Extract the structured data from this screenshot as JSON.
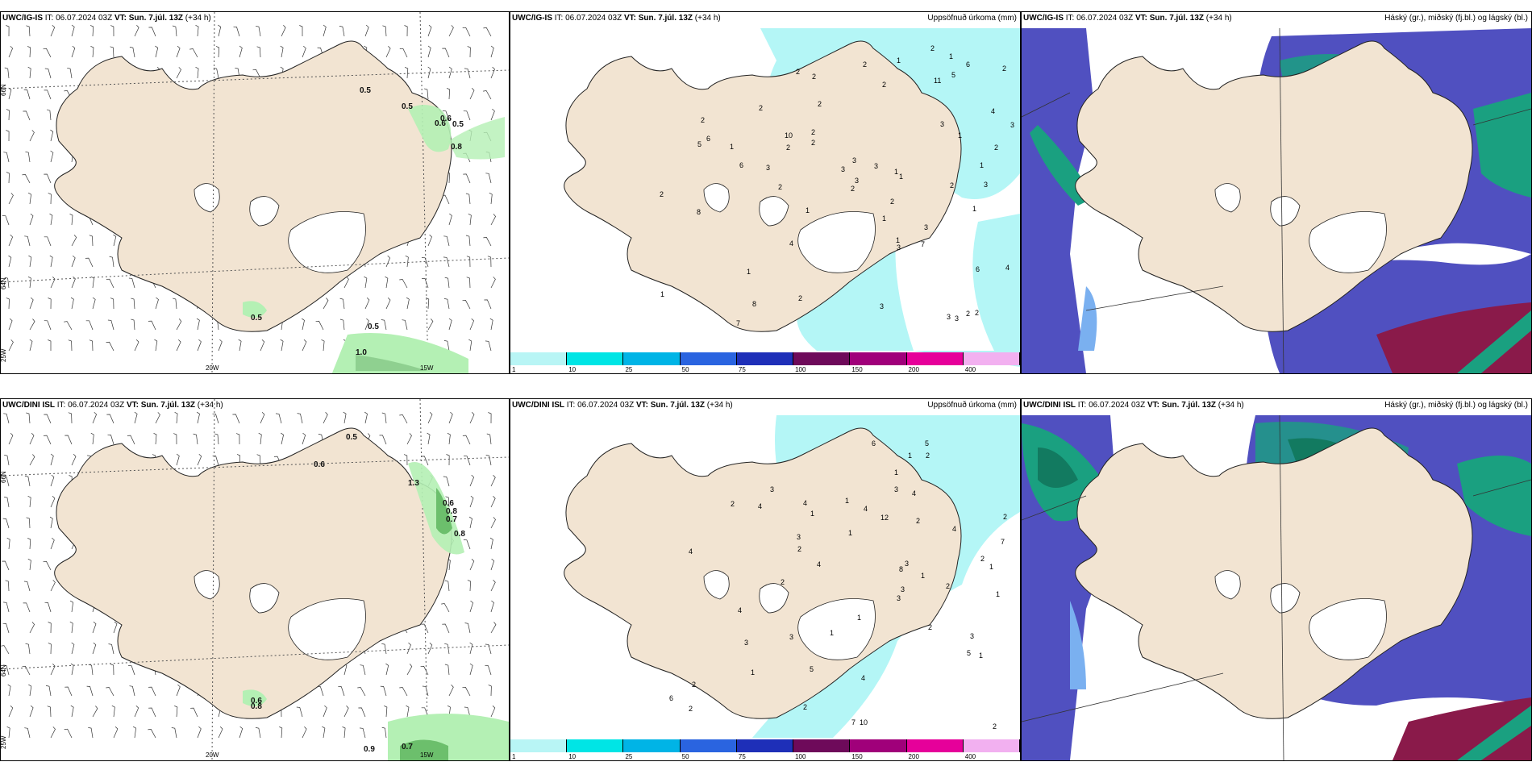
{
  "panels": {
    "p1": {
      "model": "UWC/IG-IS",
      "it_label": "IT:",
      "it": "06.07.2024 03Z",
      "vt_label": "VT:",
      "vt": "Sun. 7.júl. 13Z",
      "lead": "(+34 h)",
      "right": ""
    },
    "p2": {
      "model": "UWC/IG-IS",
      "it_label": "IT:",
      "it": "06.07.2024 03Z",
      "vt_label": "VT:",
      "vt": "Sun. 7.júl. 13Z",
      "lead": "(+34 h)",
      "right": "Uppsöfnuð úrkoma (mm)"
    },
    "p3": {
      "model": "UWC/IG-IS",
      "it_label": "IT:",
      "it": "06.07.2024 03Z",
      "vt_label": "VT:",
      "vt": "Sun. 7.júl. 13Z",
      "lead": "(+34 h)",
      "right": "Háský (gr.), miðský (fj.bl.) og lágský (bl.)"
    },
    "p4": {
      "model": "UWC/DINI ISL",
      "it_label": "IT:",
      "it": "06.07.2024 03Z",
      "vt_label": "VT:",
      "vt": "Sun. 7.júl. 13Z",
      "lead": "(+34 h)",
      "right": ""
    },
    "p5": {
      "model": "UWC/DINI ISL",
      "it_label": "IT:",
      "it": "06.07.2024 03Z",
      "vt_label": "VT:",
      "vt": "Sun. 7.júl. 13Z",
      "lead": "(+34 h)",
      "right": "Uppsöfnuð úrkoma (mm)"
    },
    "p6": {
      "model": "UWC/DINI ISL",
      "it_label": "IT:",
      "it": "06.07.2024 03Z",
      "vt_label": "VT:",
      "vt": "Sun. 7.júl. 13Z",
      "lead": "(+34 h)",
      "right": "Háský (gr.), miðský (fj.bl.) og lágský (bl.)"
    }
  },
  "axis_labels": {
    "lat66": "66N",
    "lat64": "64N",
    "lon20": "20W",
    "lon15": "15W",
    "lon25": "25W"
  },
  "colorbar": {
    "labels": [
      "1",
      "10",
      "25",
      "50",
      "75",
      "100",
      "150",
      "200",
      "400"
    ],
    "colors": [
      "#b8f5f5",
      "#00e5e5",
      "#00b4e6",
      "#2a64e0",
      "#1e2fb8",
      "#6e0a5a",
      "#a0007a",
      "#e6009a",
      "#f2b0f0"
    ]
  },
  "colors": {
    "land": "#f2e4d2",
    "precip": "#b4f6f6",
    "precip_green": "#b4f0b4",
    "cloud_high": "#5050c0",
    "cloud_mid": "#1aa080",
    "cloud_low": "#7ab0f0"
  },
  "wind_gust_labels_top": [
    "0.5",
    "0.5",
    "0.6",
    "0.5",
    "0.8",
    "0.5",
    "0.5",
    "1.0",
    "0.6"
  ],
  "wind_gust_labels_bottom": [
    "0.5",
    "0.6",
    "1.3",
    "0.6",
    "0.8",
    "0.7",
    "0.8",
    "0.6",
    "0.8",
    "0.9",
    "0.7"
  ],
  "precip_labels_top": [
    "2",
    "2",
    "2",
    "1",
    "3",
    "7",
    "3",
    "3",
    "2",
    "3",
    "4",
    "6",
    "5",
    "3",
    "2",
    "3",
    "1",
    "1",
    "1",
    "3",
    "2",
    "4",
    "3",
    "1",
    "1",
    "1",
    "2",
    "2",
    "3",
    "8",
    "10",
    "3",
    "2",
    "2",
    "3",
    "2",
    "2",
    "2",
    "2",
    "2",
    "1",
    "5",
    "2",
    "2",
    "8",
    "2",
    "2",
    "1",
    "2",
    "6",
    "6",
    "11",
    "7",
    "4",
    "1",
    "1",
    "1",
    "1",
    "2",
    "3",
    "6",
    "3"
  ],
  "precip_labels_bottom": [
    "1",
    "2",
    "3",
    "3",
    "3",
    "4",
    "4",
    "2",
    "2",
    "1",
    "1",
    "4",
    "5",
    "7",
    "5",
    "4",
    "3",
    "2",
    "2",
    "1",
    "1",
    "2",
    "1",
    "2",
    "3",
    "10",
    "3",
    "2",
    "3",
    "2",
    "1",
    "4",
    "2",
    "1",
    "5",
    "2",
    "1",
    "2",
    "1",
    "6",
    "7",
    "4",
    "12",
    "8",
    "4",
    "4",
    "2",
    "6",
    "4",
    "1",
    "3",
    "3",
    "1"
  ]
}
